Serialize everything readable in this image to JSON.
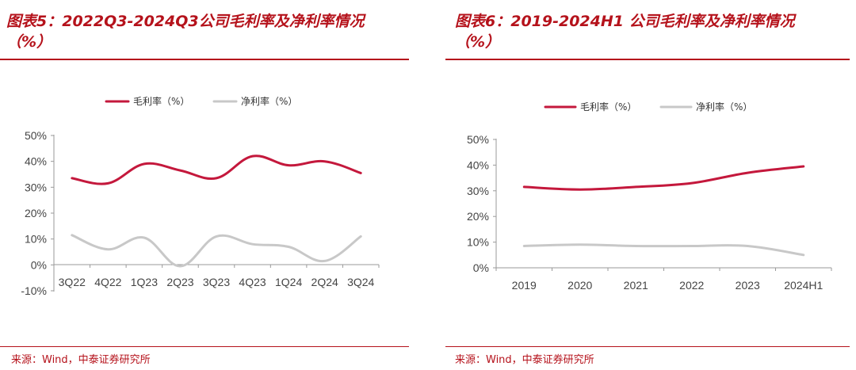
{
  "source_label": "来源：Wind，中泰证券研究所",
  "colors": {
    "accent": "#b5121b",
    "series_gross": "#c4183c",
    "series_net": "#c8c8c8"
  },
  "chart_data": [
    {
      "type": "line",
      "title": "图表5：2022Q3-2024Q3公司毛利率及净利率情况",
      "title_unit": "（%）",
      "categories": [
        "3Q22",
        "4Q22",
        "1Q23",
        "2Q23",
        "3Q23",
        "4Q23",
        "1Q24",
        "2Q24",
        "3Q24"
      ],
      "series": [
        {
          "name": "毛利率（%）",
          "values": [
            33.5,
            31.5,
            39,
            36.5,
            33.5,
            42,
            38.5,
            40,
            35.5
          ]
        },
        {
          "name": "净利率（%）",
          "values": [
            11.5,
            6,
            10.5,
            -0.5,
            11,
            8,
            7,
            1.5,
            11
          ]
        }
      ],
      "yticks": [
        "50%",
        "40%",
        "30%",
        "20%",
        "10%",
        "0%",
        "-10%"
      ],
      "ylim": [
        -10,
        50
      ],
      "legend_position": "top",
      "grid": false,
      "smooth": true
    },
    {
      "type": "line",
      "title": "图表6：2019-2024H1 公司毛利率及净利率情况",
      "title_unit": "（%）",
      "categories": [
        "2019",
        "2020",
        "2021",
        "2022",
        "2023",
        "2024H1"
      ],
      "series": [
        {
          "name": "毛利率（%）",
          "values": [
            31.5,
            30.5,
            31.5,
            33.0,
            37.0,
            39.5
          ]
        },
        {
          "name": "净利率（%）",
          "values": [
            8.5,
            9.0,
            8.5,
            8.5,
            8.5,
            5.0
          ]
        }
      ],
      "yticks": [
        "50%",
        "40%",
        "30%",
        "20%",
        "10%",
        "0%"
      ],
      "ylim": [
        0,
        50
      ],
      "legend_position": "top",
      "grid": false,
      "smooth": true
    }
  ]
}
